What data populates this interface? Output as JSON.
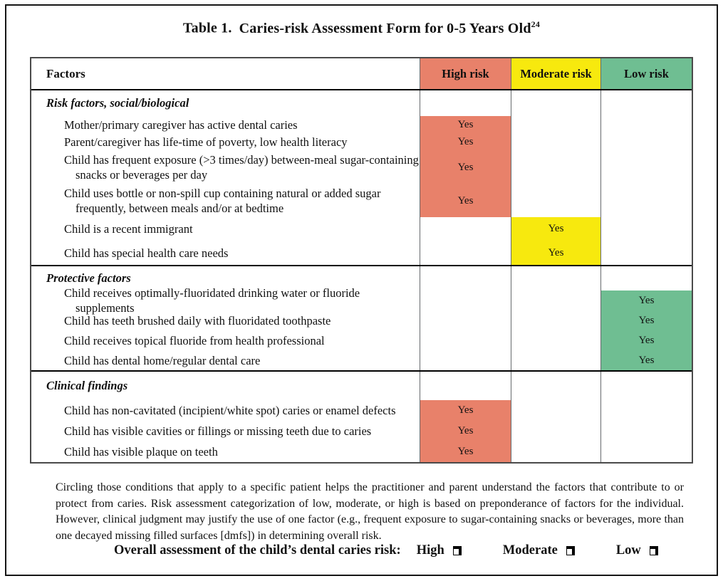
{
  "page": {
    "title_prefix": "Table 1.",
    "title_main": "Caries-risk Assessment Form for 0-5 Years Old",
    "title_superscript": "24"
  },
  "colors": {
    "high": "#E8816A",
    "moderate": "#F7E90E",
    "low": "#6FBE92"
  },
  "table": {
    "headers": {
      "factors": "Factors",
      "high": "High risk",
      "moderate": "Moderate risk",
      "low": "Low risk"
    },
    "sections": [
      {
        "heading": "Risk factors, social/biological",
        "rows": [
          {
            "text": "Mother/primary caregiver has active dental caries",
            "risk": "high",
            "value": "Yes"
          },
          {
            "text": "Parent/caregiver has life-time of poverty, low health literacy",
            "risk": "high",
            "value": "Yes"
          },
          {
            "text": "Child has frequent exposure (>3 times/day) between-meal sugar-containing snacks or beverages per day",
            "risk": "high",
            "value": "Yes"
          },
          {
            "text": "Child uses bottle or non-spill cup containing natural or added sugar frequently, between meals and/or at bedtime",
            "risk": "high",
            "value": "Yes"
          },
          {
            "text": "Child is a recent immigrant",
            "risk": "moderate",
            "value": "Yes"
          },
          {
            "text": "Child has special health care needs",
            "risk": "moderate",
            "value": "Yes"
          }
        ]
      },
      {
        "heading": "Protective factors",
        "rows": [
          {
            "text": "Child receives optimally-fluoridated drinking water or fluoride supplements",
            "risk": "low",
            "value": "Yes"
          },
          {
            "text": "Child has teeth brushed daily with fluoridated toothpaste",
            "risk": "low",
            "value": "Yes"
          },
          {
            "text": "Child receives topical fluoride from health professional",
            "risk": "low",
            "value": "Yes"
          },
          {
            "text": "Child has dental home/regular dental care",
            "risk": "low",
            "value": "Yes"
          }
        ]
      },
      {
        "heading": "Clinical findings",
        "rows": [
          {
            "text": "Child has non-cavitated (incipient/white spot) caries or enamel defects",
            "risk": "high",
            "value": "Yes"
          },
          {
            "text": "Child has visible cavities or fillings or missing teeth due to caries",
            "risk": "high",
            "value": "Yes"
          },
          {
            "text": "Child has visible plaque on teeth",
            "risk": "high",
            "value": "Yes"
          }
        ]
      }
    ]
  },
  "footnote": "Circling those conditions that apply to a specific patient helps the practitioner and parent understand the factors that contribute to or protect from caries. Risk assessment categorization of low, moderate, or high is based on preponderance of factors for the individual. However, clinical judgment may justify the use of one factor (e.g., frequent exposure to sugar-containing snacks or beverages, more than one decayed missing filled surfaces [dmfs]) in determining overall risk.",
  "overall": {
    "label": "Overall assessment of the child’s dental caries risk:",
    "options": [
      {
        "label": "High"
      },
      {
        "label": "Moderate"
      },
      {
        "label": "Low"
      }
    ]
  }
}
